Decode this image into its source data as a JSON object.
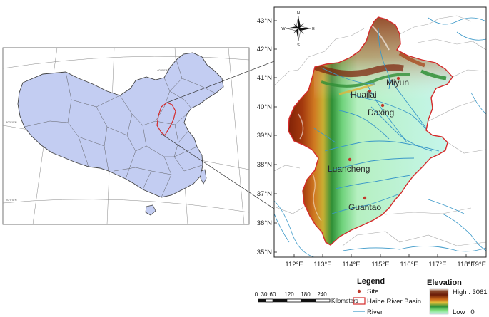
{
  "main_map": {
    "lat_labels": [
      "43°N",
      "42°N",
      "41°N",
      "40°N",
      "39°N",
      "38°N",
      "37°N",
      "36°N",
      "35°N"
    ],
    "lon_labels": [
      "112°E",
      "113°E",
      "114°E",
      "115°E",
      "116°E",
      "117°E",
      "118°E",
      "119°E"
    ],
    "sites": [
      {
        "name": "Miyun"
      },
      {
        "name": "Huailai"
      },
      {
        "name": "Daxing"
      },
      {
        "name": "Luancheng"
      },
      {
        "name": "Guantao"
      }
    ],
    "compass": {
      "n": "N",
      "s": "S",
      "e": "E",
      "w": "W"
    }
  },
  "inset_map": {
    "grid_labels": [
      "40°0'0\"N",
      "30°0'0\"N",
      "20°0'0\"N"
    ]
  },
  "legend": {
    "title": "Legend",
    "site_label": "Site",
    "basin_label": "Haihe River Basin",
    "river_label": "River"
  },
  "elevation_legend": {
    "title": "Elevation",
    "high_label": "High : 3061",
    "low_label": "Low : 0"
  },
  "scale_bar": {
    "ticks": [
      "0",
      "30",
      "60",
      "120",
      "180",
      "240"
    ],
    "unit": "Kilometers"
  },
  "colors": {
    "china_fill": "#c3cdf2",
    "basin_outline": "#d42a2a",
    "river": "#3a98c8",
    "site_dot": "#c0392b"
  }
}
